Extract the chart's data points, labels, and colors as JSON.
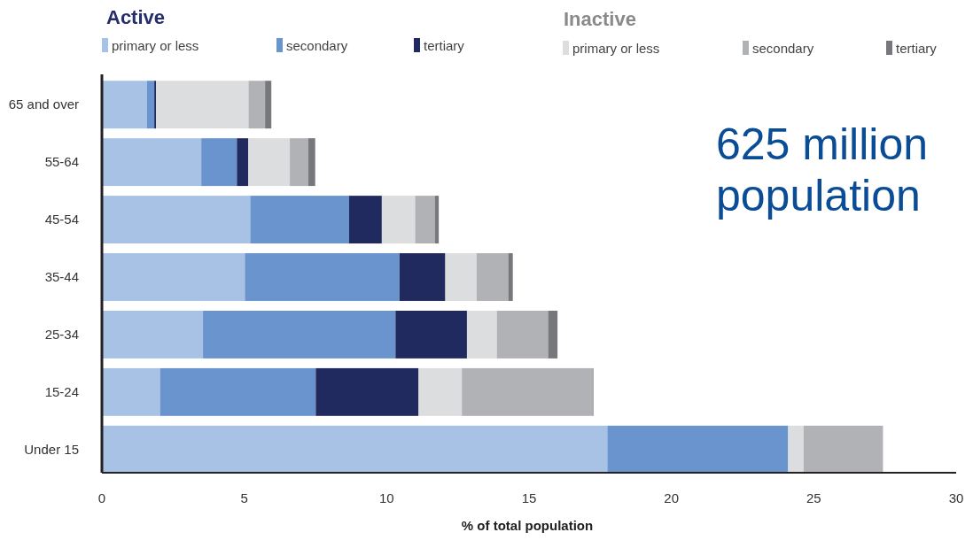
{
  "chart_data": {
    "type": "bar",
    "orientation": "horizontal",
    "stacked": true,
    "xlabel": "% of total population",
    "categories": [
      "65 and over",
      "55-64",
      "45-54",
      "35-44",
      "25-34",
      "15-24",
      "Under 15"
    ],
    "series": [
      {
        "name": "primary or less",
        "color": "#a8c2e6",
        "values": [
          1.58,
          3.49,
          5.21,
          5.02,
          3.55,
          2.04,
          17.75
        ]
      },
      {
        "name": "secondary",
        "color": "#6a94cd",
        "values": [
          0.26,
          1.25,
          3.47,
          5.43,
          6.76,
          5.47,
          6.35
        ]
      },
      {
        "name": "tertiary",
        "color": "#212a5e",
        "values": [
          0.06,
          0.4,
          1.15,
          1.61,
          2.51,
          3.61,
          0
        ]
      },
      {
        "name": "primary or less",
        "color": "#dcdddf",
        "values": [
          3.25,
          1.46,
          1.17,
          1.1,
          1.05,
          1.52,
          0.54
        ]
      },
      {
        "name": "secondary",
        "color": "#b1b2b5",
        "values": [
          0.58,
          0.65,
          0.69,
          1.11,
          1.8,
          4.59,
          2.79
        ]
      },
      {
        "name": "tertiary",
        "color": "#77787b",
        "values": [
          0.22,
          0.24,
          0.14,
          0.16,
          0.33,
          0.03,
          0
        ]
      }
    ],
    "xlim": [
      0,
      30
    ],
    "xticks": [
      0,
      5,
      10,
      15,
      20,
      25,
      30
    ],
    "legend": "top",
    "annotations": [
      "Active",
      "Inactive",
      "625 million population"
    ]
  }
}
